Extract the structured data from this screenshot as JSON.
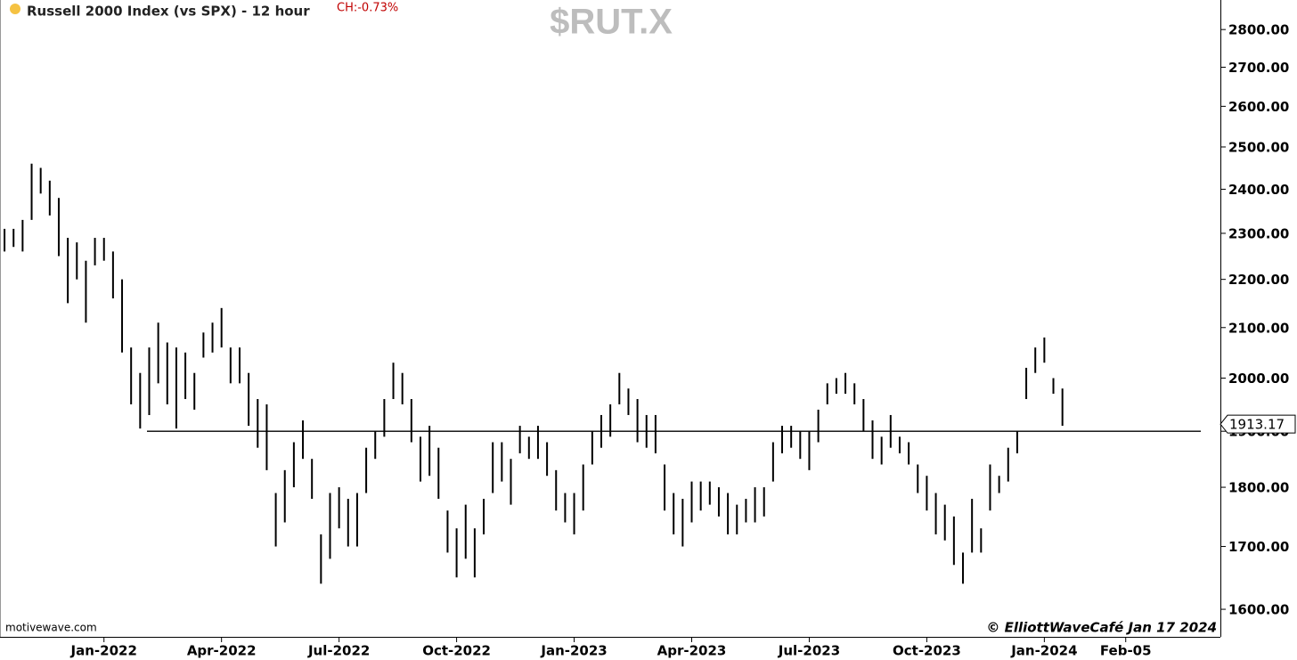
{
  "chart_data": {
    "type": "range",
    "title": "Russell 2000 Index (vs SPX) - 12 hour",
    "change_label": "CH:-0.73%",
    "symbol": "$RUT.X",
    "source": "motivewave.com",
    "credit": "© ElliottWaveCafé Jan 17 2024",
    "color": "#000000",
    "log_scale": true,
    "ylim": [
      1558,
      2881
    ],
    "yticks": [
      {
        "value": 1600,
        "label": "1600.00"
      },
      {
        "value": 1700,
        "label": "1700.00"
      },
      {
        "value": 1800,
        "label": "1800.00"
      },
      {
        "value": 1900,
        "label": "1900.00"
      },
      {
        "value": 2000,
        "label": "2000.00"
      },
      {
        "value": 2100,
        "label": "2100.00"
      },
      {
        "value": 2200,
        "label": "2200.00"
      },
      {
        "value": 2300,
        "label": "2300.00"
      },
      {
        "value": 2400,
        "label": "2400.00"
      },
      {
        "value": 2500,
        "label": "2500.00"
      },
      {
        "value": 2600,
        "label": "2600.00"
      },
      {
        "value": 2700,
        "label": "2700.00"
      },
      {
        "value": 2800,
        "label": "2800.00"
      }
    ],
    "reference_line": 1900,
    "last_price": 1913.17,
    "categories": [
      null,
      null,
      null,
      null,
      null,
      null,
      null,
      null,
      null,
      null,
      null,
      "Jan-2022",
      null,
      null,
      null,
      null,
      null,
      null,
      null,
      null,
      null,
      null,
      null,
      null,
      "Apr-2022",
      null,
      null,
      null,
      null,
      null,
      null,
      null,
      null,
      null,
      null,
      null,
      null,
      "Jul-2022",
      null,
      null,
      null,
      null,
      null,
      null,
      null,
      null,
      null,
      null,
      null,
      null,
      "Oct-2022",
      null,
      null,
      null,
      null,
      null,
      null,
      null,
      null,
      null,
      null,
      null,
      null,
      "Jan-2023",
      null,
      null,
      null,
      null,
      null,
      null,
      null,
      null,
      null,
      null,
      null,
      null,
      "Apr-2023",
      null,
      null,
      null,
      null,
      null,
      null,
      null,
      null,
      null,
      null,
      null,
      null,
      "Jul-2023",
      null,
      null,
      null,
      null,
      null,
      null,
      null,
      null,
      null,
      null,
      null,
      null,
      "Oct-2023",
      null,
      null,
      null,
      null,
      null,
      null,
      null,
      null,
      null,
      null,
      null,
      null,
      "Jan-2024",
      null,
      null,
      null,
      null,
      null,
      null,
      null,
      null,
      "Feb-05",
      null,
      null,
      null,
      null,
      null,
      null,
      null,
      null
    ],
    "high": [
      2310,
      2310,
      2330,
      2460,
      2450,
      2420,
      2380,
      2290,
      2280,
      2240,
      2290,
      2290,
      2260,
      2200,
      2060,
      2010,
      2060,
      2110,
      2070,
      2060,
      2050,
      2010,
      2090,
      2110,
      2140,
      2060,
      2060,
      2010,
      1960,
      1950,
      1790,
      1830,
      1880,
      1920,
      1850,
      1720,
      1790,
      1800,
      1780,
      1790,
      1870,
      1900,
      1960,
      2030,
      2010,
      1960,
      1890,
      1910,
      1870,
      1760,
      1730,
      1770,
      1730,
      1780,
      1880,
      1880,
      1850,
      1910,
      1890,
      1910,
      1880,
      1830,
      1790,
      1790,
      1840,
      1900,
      1930,
      1950,
      2010,
      1980,
      1960,
      1930,
      1930,
      1840,
      1790,
      1780,
      1810,
      1810,
      1810,
      1800,
      1790,
      1770,
      1780,
      1800,
      1800,
      1880,
      1910,
      1910,
      1900,
      1900,
      1940,
      1990,
      2000,
      2010,
      1990,
      1960,
      1920,
      1890,
      1930,
      1890,
      1880,
      1840,
      1820,
      1790,
      1770,
      1750,
      1690,
      1780,
      1730,
      1840,
      1820,
      1870,
      1900,
      2020,
      2060,
      2080,
      2000,
      1980,
      null,
      null,
      null,
      null,
      null,
      null,
      null,
      null,
      null,
      null,
      null,
      null,
      null,
      null,
      null
    ],
    "low": [
      2260,
      2270,
      2260,
      2330,
      2390,
      2340,
      2250,
      2150,
      2200,
      2110,
      2230,
      2240,
      2160,
      2050,
      1950,
      1905,
      1930,
      1990,
      1950,
      1905,
      1960,
      1940,
      2040,
      2050,
      2060,
      1990,
      1990,
      1910,
      1870,
      1830,
      1700,
      1740,
      1800,
      1850,
      1780,
      1640,
      1680,
      1730,
      1700,
      1700,
      1790,
      1850,
      1890,
      1960,
      1950,
      1880,
      1810,
      1820,
      1780,
      1690,
      1650,
      1680,
      1650,
      1720,
      1790,
      1810,
      1770,
      1860,
      1850,
      1850,
      1820,
      1760,
      1740,
      1720,
      1760,
      1840,
      1870,
      1890,
      1950,
      1930,
      1880,
      1870,
      1860,
      1760,
      1720,
      1700,
      1740,
      1760,
      1770,
      1750,
      1720,
      1720,
      1740,
      1740,
      1750,
      1810,
      1860,
      1870,
      1850,
      1830,
      1880,
      1950,
      1970,
      1970,
      1950,
      1900,
      1850,
      1840,
      1870,
      1860,
      1840,
      1790,
      1760,
      1720,
      1710,
      1670,
      1640,
      1690,
      1690,
      1760,
      1790,
      1810,
      1860,
      1960,
      2010,
      2030,
      1970,
      1910,
      null,
      null,
      null,
      null,
      null,
      null,
      null,
      null,
      null,
      null,
      null,
      null,
      null,
      null,
      null
    ]
  }
}
